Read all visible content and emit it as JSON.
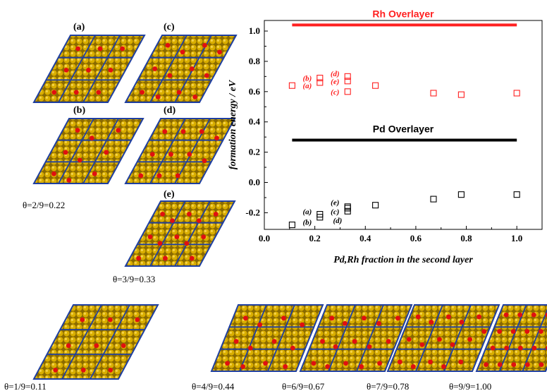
{
  "panel_labels": [
    "(a)",
    "(c)",
    "(b)",
    "(d)",
    "(e)"
  ],
  "theta_labels": {
    "t22": "θ=2/9=0.22",
    "t33": "θ=3/9=0.33",
    "t11": "θ=1/9=0.11",
    "t44": "θ=4/9=0.44",
    "t67": "θ=6/9=0.67",
    "t78": "θ=7/9=0.78",
    "t100": "θ=9/9=1.00"
  },
  "colors": {
    "rh": "#ff2020",
    "pd": "#000000",
    "slab_gold": "#d4a800",
    "slab_dark": "#6b5200",
    "atom_red": "#e01010",
    "cell_blue": "#1f3fa0"
  },
  "chart_data": {
    "type": "scatter",
    "xlabel": "Pd,Rh fraction in the second layer",
    "ylabel": "formation energy / eV",
    "xlim": [
      0.0,
      1.1
    ],
    "ylim": [
      -0.31,
      1.07
    ],
    "x_ticks": [
      "0.0",
      "0.2",
      "0.4",
      "0.6",
      "0.8",
      "1.0"
    ],
    "y_ticks": [
      "-0.2",
      "0.0",
      "0.2",
      "0.4",
      "0.6",
      "0.8",
      "1.0"
    ],
    "lines": [
      {
        "name": "Rh Overlayer",
        "y": 1.04,
        "x": [
          0.11,
          1.0
        ],
        "color": "#ff2020"
      },
      {
        "name": "Pd Overlayer",
        "y": 0.28,
        "x": [
          0.11,
          1.0
        ],
        "color": "#000000"
      }
    ],
    "series": [
      {
        "name": "Rh",
        "marker": "open-square",
        "color": "#ff2020",
        "points": [
          {
            "x": 0.11,
            "y": 0.64
          },
          {
            "x": 0.22,
            "y": 0.66
          },
          {
            "x": 0.22,
            "y": 0.69
          },
          {
            "x": 0.33,
            "y": 0.6
          },
          {
            "x": 0.33,
            "y": 0.67
          },
          {
            "x": 0.33,
            "y": 0.7
          },
          {
            "x": 0.44,
            "y": 0.64
          },
          {
            "x": 0.67,
            "y": 0.59
          },
          {
            "x": 0.78,
            "y": 0.58
          },
          {
            "x": 1.0,
            "y": 0.59
          }
        ]
      },
      {
        "name": "Pd",
        "marker": "open-square",
        "color": "#000000",
        "points": [
          {
            "x": 0.11,
            "y": -0.28
          },
          {
            "x": 0.22,
            "y": -0.23
          },
          {
            "x": 0.22,
            "y": -0.21
          },
          {
            "x": 0.33,
            "y": -0.19
          },
          {
            "x": 0.33,
            "y": -0.17
          },
          {
            "x": 0.33,
            "y": -0.16
          },
          {
            "x": 0.44,
            "y": -0.15
          },
          {
            "x": 0.67,
            "y": -0.11
          },
          {
            "x": 0.78,
            "y": -0.08
          },
          {
            "x": 1.0,
            "y": -0.08
          }
        ]
      }
    ],
    "annotations": [
      {
        "text": "(b)",
        "x": 0.17,
        "y": 0.69,
        "color": "#ff2020"
      },
      {
        "text": "(a)",
        "x": 0.17,
        "y": 0.64,
        "color": "#ff2020"
      },
      {
        "text": "(d)",
        "x": 0.28,
        "y": 0.72,
        "color": "#ff2020"
      },
      {
        "text": "(e)",
        "x": 0.28,
        "y": 0.67,
        "color": "#ff2020"
      },
      {
        "text": "(c)",
        "x": 0.28,
        "y": 0.6,
        "color": "#ff2020"
      },
      {
        "text": "(e)",
        "x": 0.28,
        "y": -0.13,
        "color": "#000000"
      },
      {
        "text": "(c)",
        "x": 0.28,
        "y": -0.19,
        "color": "#000000"
      },
      {
        "text": "(a)",
        "x": 0.17,
        "y": -0.19,
        "color": "#000000"
      },
      {
        "text": "(d)",
        "x": 0.29,
        "y": -0.25,
        "color": "#000000"
      },
      {
        "text": "(b)",
        "x": 0.17,
        "y": -0.26,
        "color": "#000000"
      }
    ]
  }
}
